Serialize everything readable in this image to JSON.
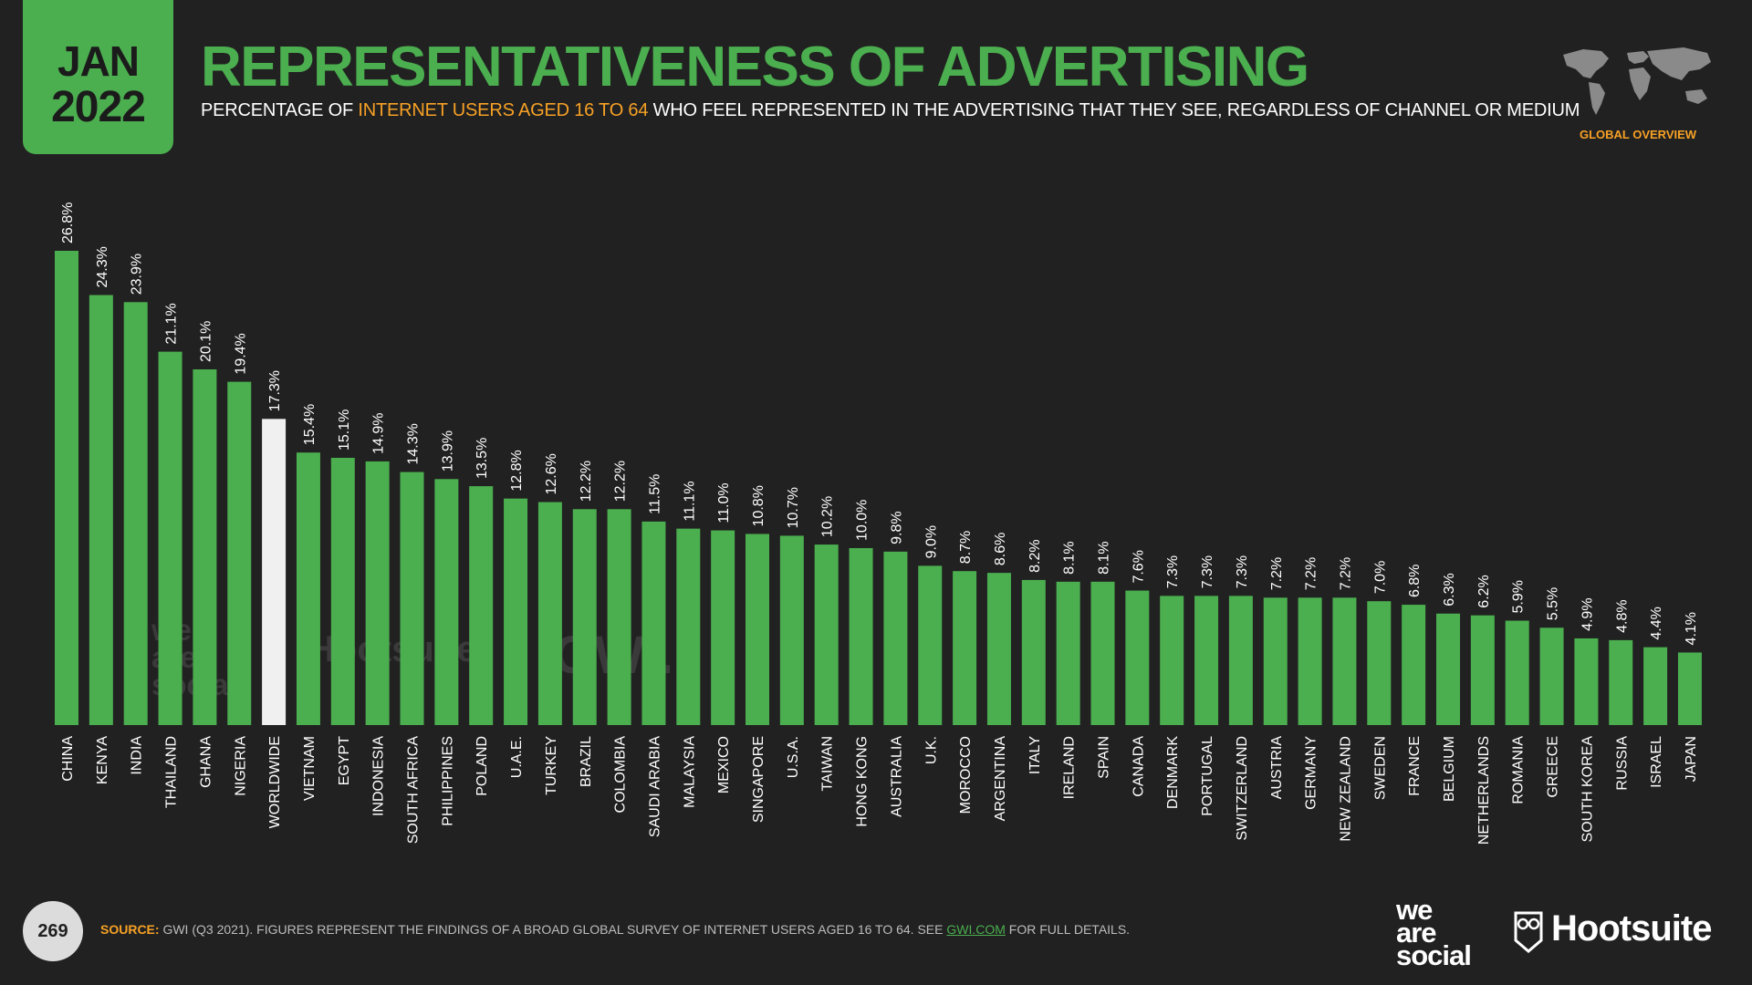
{
  "header": {
    "month": "JAN",
    "year": "2022",
    "title": "REPRESENTATIVENESS OF ADVERTISING",
    "subtitle_pre": "PERCENTAGE OF ",
    "subtitle_highlight": "INTERNET USERS AGED 16 TO 64",
    "subtitle_post": " WHO FEEL REPRESENTED IN THE ADVERTISING THAT THEY SEE, REGARDLESS OF CHANNEL OR MEDIUM",
    "section": "GLOBAL OVERVIEW"
  },
  "colors": {
    "bar": "#4bae4f",
    "highlight_bar": "#f0f0f0",
    "accent": "#f7a125",
    "background": "#212121"
  },
  "chart_data": {
    "type": "bar",
    "title": "REPRESENTATIVENESS OF ADVERTISING",
    "xlabel": "",
    "ylabel": "",
    "ylim": [
      0,
      26.8
    ],
    "categories": [
      "CHINA",
      "KENYA",
      "INDIA",
      "THAILAND",
      "GHANA",
      "NIGERIA",
      "WORLDWIDE",
      "VIETNAM",
      "EGYPT",
      "INDONESIA",
      "SOUTH AFRICA",
      "PHILIPPINES",
      "POLAND",
      "U.A.E.",
      "TURKEY",
      "BRAZIL",
      "COLOMBIA",
      "SAUDI ARABIA",
      "MALAYSIA",
      "MEXICO",
      "SINGAPORE",
      "U.S.A.",
      "TAIWAN",
      "HONG KONG",
      "AUSTRALIA",
      "U.K.",
      "MOROCCO",
      "ARGENTINA",
      "ITALY",
      "IRELAND",
      "SPAIN",
      "CANADA",
      "DENMARK",
      "PORTUGAL",
      "SWITZERLAND",
      "AUSTRIA",
      "GERMANY",
      "NEW ZEALAND",
      "SWEDEN",
      "FRANCE",
      "BELGIUM",
      "NETHERLANDS",
      "ROMANIA",
      "GREECE",
      "SOUTH KOREA",
      "RUSSIA",
      "ISRAEL",
      "JAPAN"
    ],
    "values": [
      26.8,
      24.3,
      23.9,
      21.1,
      20.1,
      19.4,
      17.3,
      15.4,
      15.1,
      14.9,
      14.3,
      13.9,
      13.5,
      12.8,
      12.6,
      12.2,
      12.2,
      11.5,
      11.1,
      11.0,
      10.8,
      10.7,
      10.2,
      10.0,
      9.8,
      9.0,
      8.7,
      8.6,
      8.2,
      8.1,
      8.1,
      7.6,
      7.3,
      7.3,
      7.3,
      7.2,
      7.2,
      7.2,
      7.0,
      6.8,
      6.3,
      6.2,
      5.9,
      5.5,
      4.9,
      4.8,
      4.4,
      4.1
    ],
    "labels": [
      "26.8%",
      "24.3%",
      "23.9%",
      "21.1%",
      "20.1%",
      "19.4%",
      "17.3%",
      "15.4%",
      "15.1%",
      "14.9%",
      "14.3%",
      "13.9%",
      "13.5%",
      "12.8%",
      "12.6%",
      "12.2%",
      "12.2%",
      "11.5%",
      "11.1%",
      "11.0%",
      "10.8%",
      "10.7%",
      "10.2%",
      "10.0%",
      "9.8%",
      "9.0%",
      "8.7%",
      "8.6%",
      "8.2%",
      "8.1%",
      "8.1%",
      "7.6%",
      "7.3%",
      "7.3%",
      "7.3%",
      "7.2%",
      "7.2%",
      "7.2%",
      "7.0%",
      "6.8%",
      "6.3%",
      "6.2%",
      "5.9%",
      "5.5%",
      "4.9%",
      "4.8%",
      "4.4%",
      "4.1%"
    ],
    "highlight_category": "WORLDWIDE"
  },
  "watermarks": {
    "we": "we",
    "are": "are",
    "social": "social",
    "hootsuite": "Hootsuite",
    "gwi": "GWI."
  },
  "footer": {
    "page_number": "269",
    "source_label": "SOURCE:",
    "source_text": " GWI (Q3 2021). FIGURES REPRESENT THE FINDINGS OF A BROAD GLOBAL SURVEY OF INTERNET USERS AGED 16 TO 64. SEE ",
    "source_link": "GWI.COM",
    "source_tail": " FOR FULL DETAILS.",
    "brand_we": "we",
    "brand_are": "are",
    "brand_social": "social",
    "brand_hootsuite": "Hootsuite"
  }
}
